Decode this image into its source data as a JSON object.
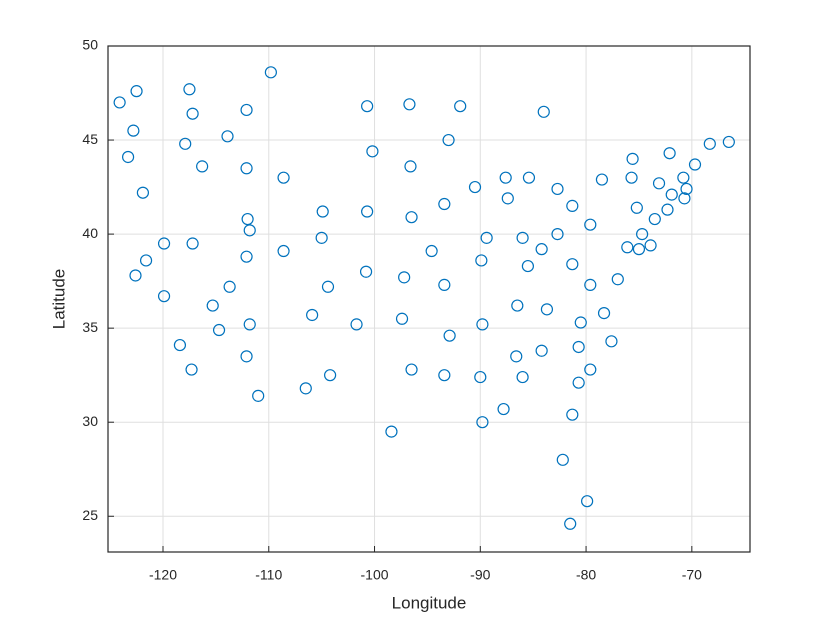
{
  "chart_data": {
    "type": "scatter",
    "xlabel": "Longitude",
    "ylabel": "Latitude",
    "color": "#0072bd",
    "grid": true,
    "box": true,
    "xlim": [
      -125.2,
      -64.5
    ],
    "ylim": [
      23.1,
      50
    ],
    "xticks": [
      -120,
      -110,
      -100,
      -90,
      -80,
      -70
    ],
    "yticks": [
      25,
      30,
      35,
      40,
      45,
      50
    ],
    "x": [
      -124.1,
      -122.5,
      -122.8,
      -123.3,
      -121.9,
      -119.9,
      -121.6,
      -122.6,
      -119.9,
      -117.5,
      -117.2,
      -117.9,
      -116.3,
      -113.9,
      -112.1,
      -109.8,
      -112.1,
      -112.0,
      -111.8,
      -117.2,
      -112.1,
      -108.6,
      -108.6,
      -113.7,
      -115.3,
      -114.7,
      -111.8,
      -118.4,
      -117.3,
      -112.1,
      -111.0,
      -106.5,
      -104.2,
      -105.9,
      -101.7,
      -104.4,
      -105.0,
      -104.9,
      -100.7,
      -100.2,
      -96.7,
      -91.9,
      -84.0,
      -96.6,
      -93.0,
      -100.7,
      -96.5,
      -93.4,
      -100.8,
      -97.2,
      -94.6,
      -93.4,
      -97.4,
      -92.9,
      -96.5,
      -93.4,
      -98.4,
      -90.5,
      -87.6,
      -87.4,
      -89.4,
      -89.9,
      -85.4,
      -82.7,
      -81.3,
      -79.6,
      -86.0,
      -82.7,
      -84.2,
      -85.5,
      -81.3,
      -79.6,
      -77.0,
      -86.5,
      -83.7,
      -89.8,
      -86.6,
      -84.2,
      -80.5,
      -78.3,
      -80.7,
      -77.6,
      -90.0,
      -86.0,
      -79.6,
      -80.7,
      -87.8,
      -89.8,
      -81.3,
      -82.2,
      -79.9,
      -81.5,
      -78.5,
      -75.6,
      -75.7,
      -75.2,
      -76.1,
      -74.7,
      -75.0,
      -73.9,
      -73.5,
      -72.3,
      -73.1,
      -71.9,
      -70.7,
      -70.5,
      -70.8,
      -72.1,
      -69.7,
      -68.3,
      -66.5
    ],
    "values": [
      47.0,
      47.6,
      45.5,
      44.1,
      42.2,
      39.5,
      38.6,
      37.8,
      36.7,
      47.7,
      46.4,
      44.8,
      43.6,
      45.2,
      46.6,
      48.6,
      43.5,
      40.8,
      40.2,
      39.5,
      38.8,
      43.0,
      39.1,
      37.2,
      36.2,
      34.9,
      35.2,
      34.1,
      32.8,
      33.5,
      31.4,
      31.8,
      32.5,
      35.7,
      35.2,
      37.2,
      39.8,
      41.2,
      46.8,
      44.4,
      46.9,
      46.8,
      46.5,
      43.6,
      45.0,
      41.2,
      40.9,
      41.6,
      38.0,
      37.7,
      39.1,
      37.3,
      35.5,
      34.6,
      32.8,
      32.5,
      29.5,
      42.5,
      43.0,
      41.9,
      39.8,
      38.6,
      43.0,
      42.4,
      41.5,
      40.5,
      39.8,
      40.0,
      39.2,
      38.3,
      38.4,
      37.3,
      37.6,
      36.2,
      36.0,
      35.2,
      33.5,
      33.8,
      35.3,
      35.8,
      34.0,
      34.3,
      32.4,
      32.4,
      32.8,
      32.1,
      30.7,
      30.0,
      30.4,
      28.0,
      25.8,
      24.6,
      42.9,
      44.0,
      43.0,
      41.4,
      39.3,
      40.0,
      39.2,
      39.4,
      40.8,
      41.3,
      42.7,
      42.1,
      41.9,
      42.4,
      43.0,
      44.3,
      43.7,
      44.8,
      44.9
    ]
  }
}
